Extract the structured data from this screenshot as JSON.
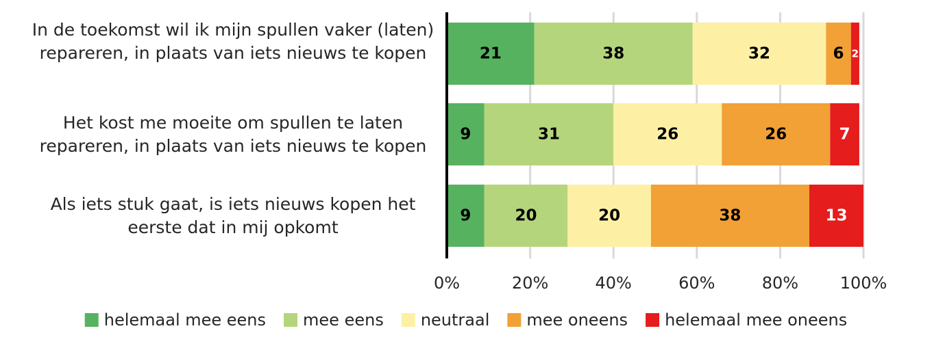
{
  "chart_data": {
    "type": "bar",
    "orientation": "horizontal",
    "stacked": true,
    "categories": [
      "In de toekomst wil ik mijn spullen vaker (laten) repareren, in plaats van iets nieuws te kopen",
      "Het kost me moeite om spullen te laten repareren, in plaats van iets nieuws te kopen",
      "Als iets stuk gaat, is iets nieuws kopen het eerste dat in mij opkomt"
    ],
    "series": [
      {
        "name": "helemaal mee eens",
        "color": "#57b25f",
        "values": [
          21,
          9,
          9
        ]
      },
      {
        "name": "mee eens",
        "color": "#b5d57c",
        "values": [
          38,
          31,
          20
        ]
      },
      {
        "name": "neutraal",
        "color": "#fdf0a5",
        "values": [
          32,
          26,
          20
        ]
      },
      {
        "name": "mee oneens",
        "color": "#f2a136",
        "values": [
          6,
          26,
          38
        ]
      },
      {
        "name": "helemaal mee oneens",
        "color": "#e51d1d",
        "values": [
          2,
          7,
          13
        ]
      }
    ],
    "data_label_colors": [
      "#000000",
      "#000000",
      "#000000",
      "#000000",
      "#ffffff"
    ],
    "x_ticks": [
      "0%",
      "20%",
      "40%",
      "60%",
      "80%",
      "100%"
    ],
    "xlim": [
      0,
      100
    ],
    "grid": "vertical",
    "legend_position": "bottom",
    "title": "",
    "xlabel": "",
    "ylabel": ""
  }
}
